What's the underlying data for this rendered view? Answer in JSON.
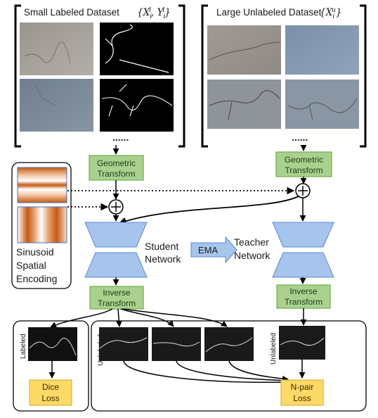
{
  "datasets": {
    "labeled_title": "Small Labeled Dataset",
    "labeled_math": "{X",
    "labeled_math_sub1": "i",
    "labeled_math_sup1": "l",
    "labeled_math_mid": ", Y",
    "labeled_math_sub2": "i",
    "labeled_math_sup2": "l",
    "labeled_math_end": "}",
    "unlabeled_title": "Large Unlabeled Dataset",
    "unlabeled_math": "{X",
    "unlabeled_math_sub": "i",
    "unlabeled_math_sup": "u",
    "unlabeled_math_end": "}",
    "ellipsis": "......"
  },
  "encoding": {
    "line1": "Sinusoid",
    "line2": "Spatial",
    "line3": "Encoding"
  },
  "transforms": {
    "geo_line1": "Geometric",
    "geo_line2": "Transform",
    "inv_line1": "Inverse",
    "inv_line2": "Transform"
  },
  "networks": {
    "student_line1": "Student",
    "student_line2": "Network",
    "teacher_line1": "Teacher",
    "teacher_line2": "Network",
    "ema": "EMA"
  },
  "outputs": {
    "labeled": "Labeled",
    "unlabeled": "Unlabeled"
  },
  "losses": {
    "dice_line1": "Dice",
    "dice_line2": "Loss",
    "npair_line1": "N-pair",
    "npair_line2": "Loss"
  },
  "colors": {
    "green_fill": "#a9d18e",
    "green_stroke": "#70ad47",
    "blue_fill": "#a6c4ec",
    "blue_stroke": "#5b8bd0",
    "yellow_fill": "#ffd966",
    "yellow_stroke": "#e0b23c",
    "stripe_orange": "#c55a11"
  }
}
